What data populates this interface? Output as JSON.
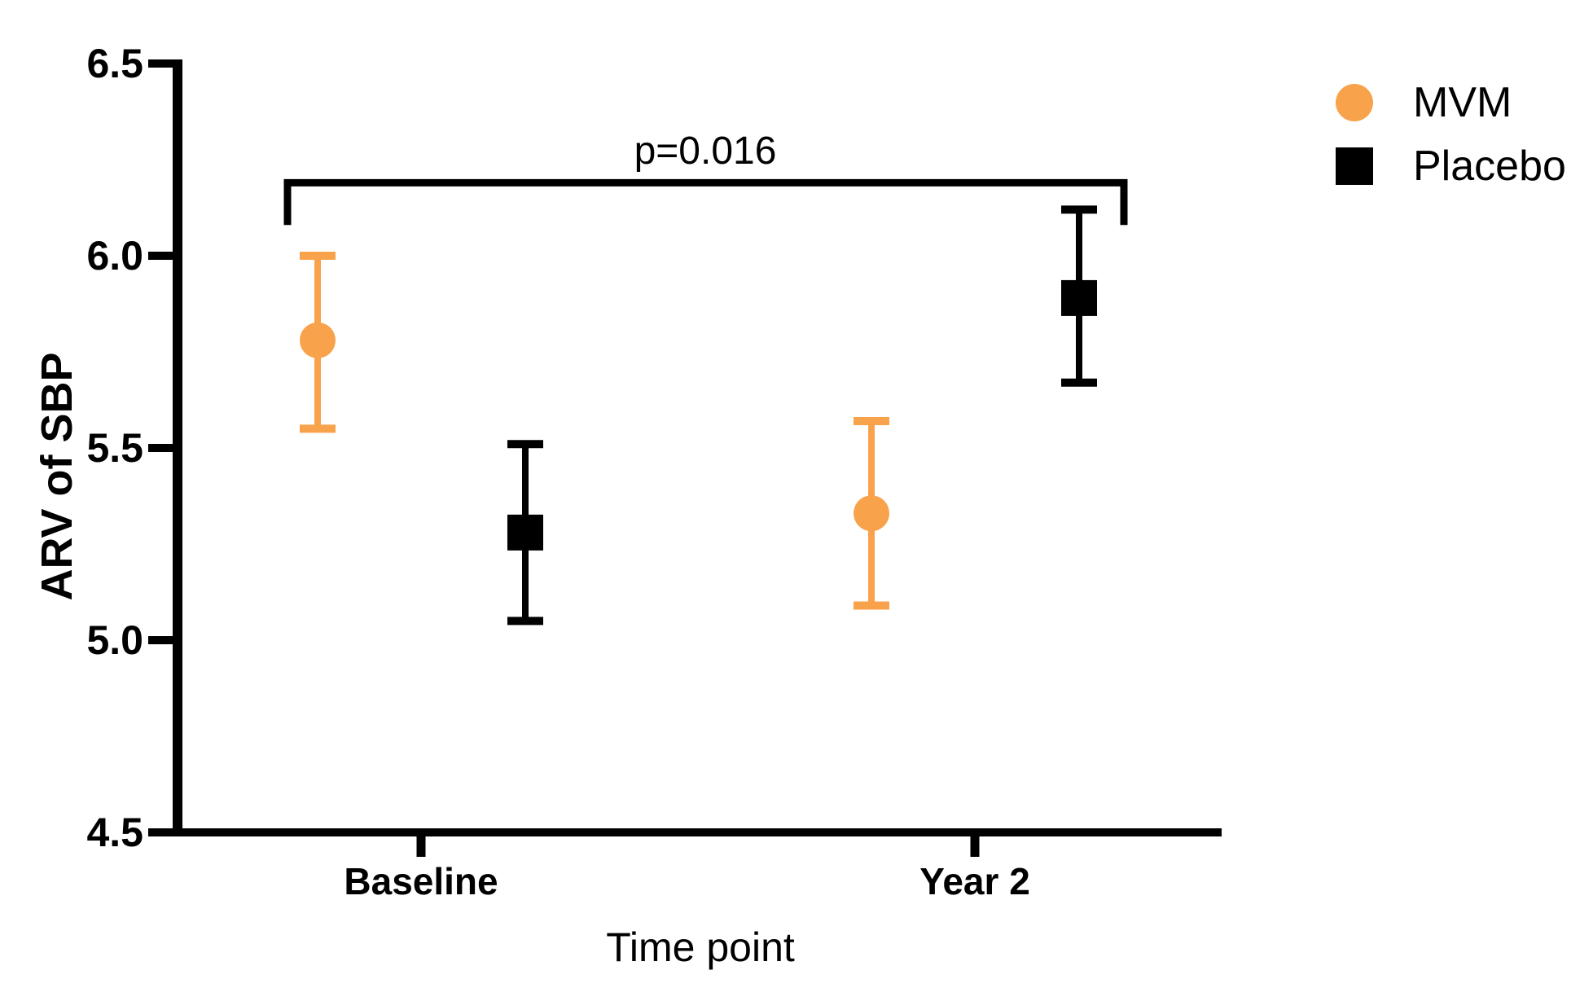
{
  "chart_data": {
    "type": "scatter",
    "subtype": "point-estimates-with-error-bars",
    "title": "",
    "xlabel": "Time point",
    "ylabel": "ARV of SBP",
    "categories": [
      "Baseline",
      "Year 2"
    ],
    "ylim": [
      4.5,
      6.5
    ],
    "yticks": [
      4.5,
      5.0,
      5.5,
      6.0,
      6.5
    ],
    "grid": false,
    "legend_position": "top-right",
    "series": [
      {
        "name": "MVM",
        "marker": "circle",
        "color": "#F9A24C",
        "means": [
          5.78,
          5.33
        ],
        "ci_high": [
          6.0,
          5.57
        ],
        "ci_low": [
          5.55,
          5.09
        ]
      },
      {
        "name": "Placebo",
        "marker": "square",
        "color": "#000000",
        "means": [
          5.28,
          5.89
        ],
        "ci_high": [
          5.51,
          6.12
        ],
        "ci_low": [
          5.05,
          5.67
        ]
      }
    ],
    "annotation": {
      "text": "p=0.016",
      "y": 6.19,
      "drop_to": 6.08,
      "x_span_categories": [
        "Baseline",
        "Year 2"
      ]
    },
    "axis_color": "#000000"
  }
}
